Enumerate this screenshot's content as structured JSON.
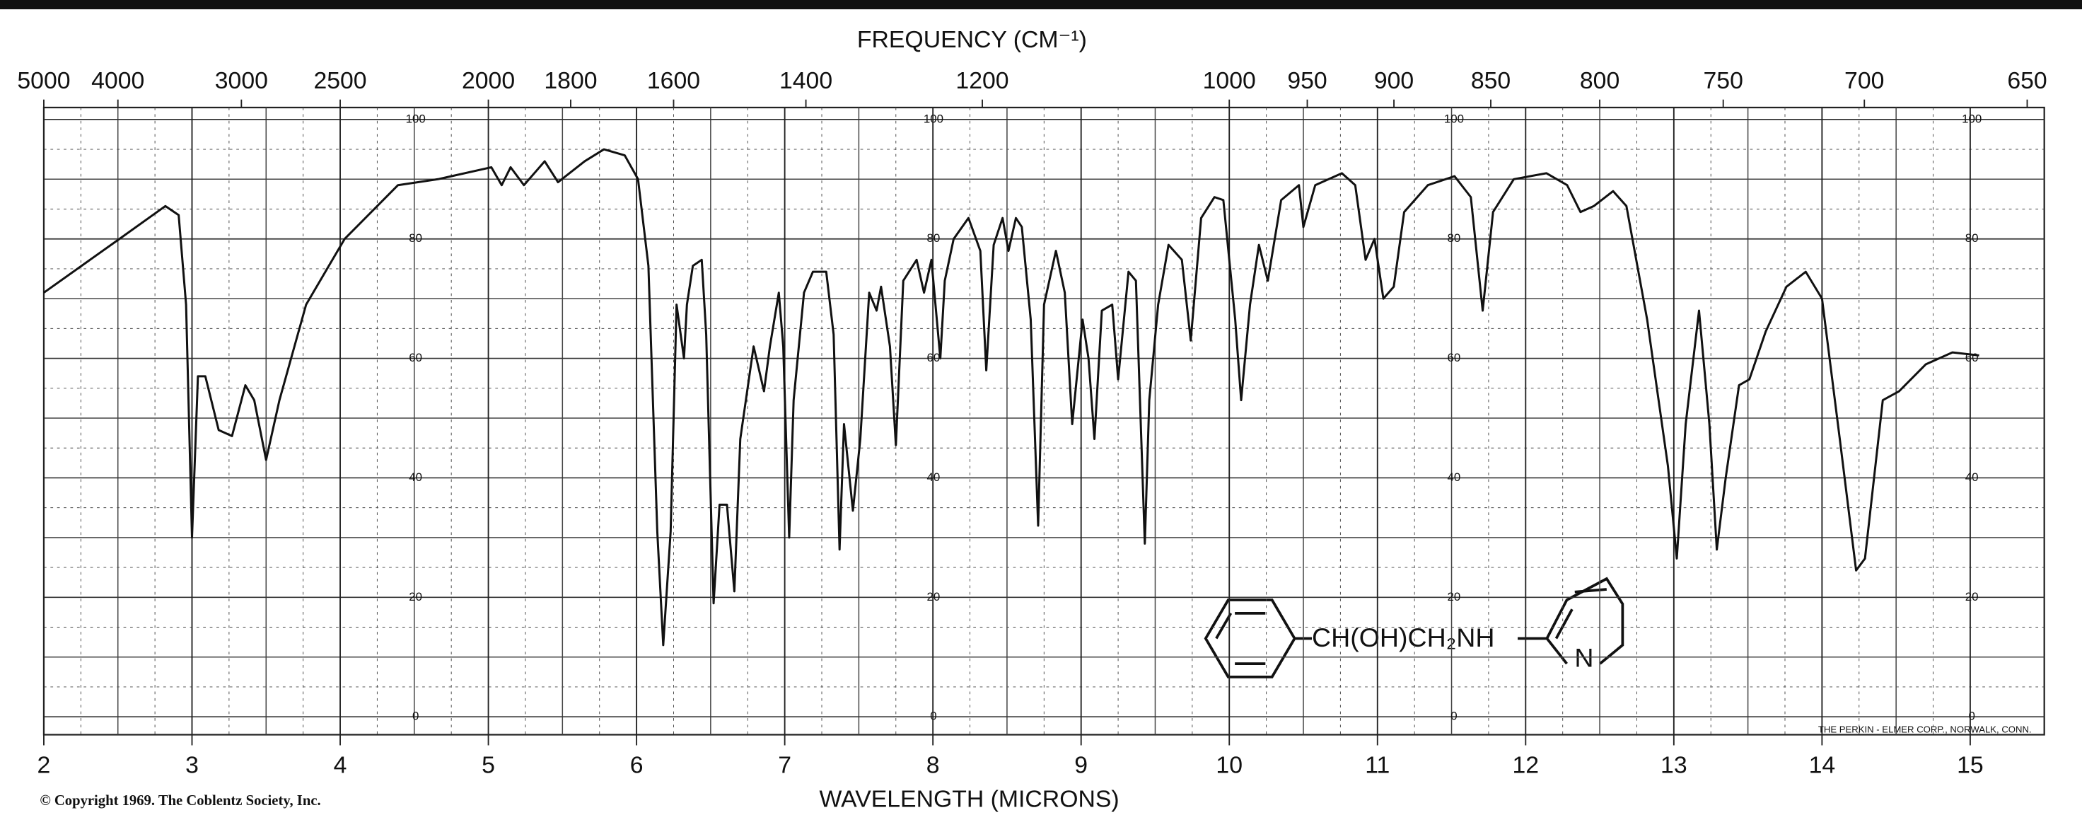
{
  "chart_data": {
    "type": "line",
    "title": "FREQUENCY (CM⁻¹)",
    "xlabel": "WAVELENGTH (MICRONS)",
    "copyright": "© Copyright 1969. The Coblentz Society, Inc.",
    "credit": "THE PERKIN - ELMER CORP., NORWALK, CONN.",
    "structure": {
      "chain": "CH(OH)CH₂NH",
      "ring_atom": "N"
    },
    "xlim": [
      2,
      15.5
    ],
    "xticks": [
      2,
      3,
      4,
      5,
      6,
      7,
      8,
      9,
      10,
      11,
      12,
      13,
      14,
      15
    ],
    "x2ticks": [
      5000,
      4000,
      3000,
      2500,
      2000,
      1800,
      1600,
      1400,
      1200,
      1000,
      950,
      900,
      850,
      800,
      750,
      700,
      650
    ],
    "ylim": [
      -3,
      102
    ],
    "yticks": [
      0,
      20,
      40,
      60,
      80,
      100
    ],
    "grid": true,
    "series": [
      {
        "color": "#111111",
        "x": [
          2.0,
          2.51,
          2.82,
          2.91,
          2.96,
          3.0,
          3.04,
          3.09,
          3.18,
          3.27,
          3.36,
          3.42,
          3.5,
          3.59,
          3.77,
          4.03,
          4.39,
          4.66,
          5.02,
          5.09,
          5.15,
          5.24,
          5.38,
          5.47,
          5.65,
          5.78,
          5.92,
          6.01,
          6.08,
          6.14,
          6.18,
          6.23,
          6.27,
          6.32,
          6.34,
          6.38,
          6.44,
          6.47,
          6.52,
          6.56,
          6.61,
          6.66,
          6.7,
          6.79,
          6.86,
          6.9,
          6.96,
          6.99,
          7.03,
          7.06,
          7.13,
          7.19,
          7.28,
          7.33,
          7.37,
          7.4,
          7.46,
          7.51,
          7.57,
          7.62,
          7.65,
          7.71,
          7.75,
          7.8,
          7.89,
          7.94,
          7.99,
          8.05,
          8.08,
          8.14,
          8.24,
          8.32,
          8.36,
          8.41,
          8.47,
          8.51,
          8.56,
          8.6,
          8.66,
          8.71,
          8.75,
          8.83,
          8.89,
          8.94,
          9.01,
          9.05,
          9.09,
          9.14,
          9.21,
          9.25,
          9.32,
          9.37,
          9.43,
          9.46,
          9.52,
          9.59,
          9.68,
          9.74,
          9.81,
          9.9,
          9.96,
          10.04,
          10.08,
          10.14,
          10.2,
          10.26,
          10.35,
          10.47,
          10.5,
          10.58,
          10.76,
          10.85,
          10.92,
          10.98,
          11.04,
          11.11,
          11.18,
          11.34,
          11.52,
          11.63,
          11.71,
          11.78,
          11.92,
          12.14,
          12.28,
          12.37,
          12.46,
          12.59,
          12.68,
          12.82,
          12.96,
          13.02,
          13.08,
          13.17,
          13.24,
          13.29,
          13.35,
          13.44,
          13.51,
          13.62,
          13.76,
          13.89,
          14.0,
          14.12,
          14.23,
          14.29,
          14.41,
          14.52,
          14.7,
          14.88,
          15.06
        ],
        "values": [
          71,
          80,
          85.5,
          84,
          69,
          30,
          57,
          57,
          48,
          47,
          55.5,
          53,
          43,
          53,
          69,
          80,
          89,
          90,
          92,
          89,
          92,
          89,
          93,
          89.5,
          93,
          95,
          94,
          90,
          75.5,
          31,
          12,
          31,
          69,
          60,
          69,
          75.5,
          76.5,
          64,
          19,
          35.5,
          35.5,
          21,
          46.5,
          62,
          54.5,
          62,
          71,
          62,
          30,
          53,
          71,
          74.5,
          74.5,
          64,
          28,
          49,
          34.5,
          46.5,
          71,
          68,
          72,
          62,
          45.5,
          73,
          76.5,
          71,
          76.5,
          60,
          73,
          80,
          83.5,
          78,
          58,
          79,
          83.5,
          78,
          83.5,
          82,
          66.5,
          32,
          69,
          78,
          71,
          49,
          66.5,
          60,
          46.5,
          68,
          69,
          56.5,
          74.5,
          73,
          29,
          53,
          69,
          79,
          76.5,
          63,
          83.5,
          87,
          86.5,
          66.5,
          53,
          69,
          79,
          73,
          86.5,
          89,
          82,
          89,
          91,
          89,
          76.5,
          80,
          70,
          72,
          84.5,
          89,
          90.5,
          87,
          68,
          84.5,
          90,
          91,
          89,
          84.5,
          85.5,
          88,
          85.5,
          66.5,
          42,
          26.5,
          49,
          68,
          49,
          28,
          40,
          55.5,
          56.5,
          64.5,
          72,
          74.5,
          70,
          46.5,
          24.5,
          26.5,
          53,
          54.5,
          59,
          61,
          60.5
        ]
      }
    ]
  }
}
